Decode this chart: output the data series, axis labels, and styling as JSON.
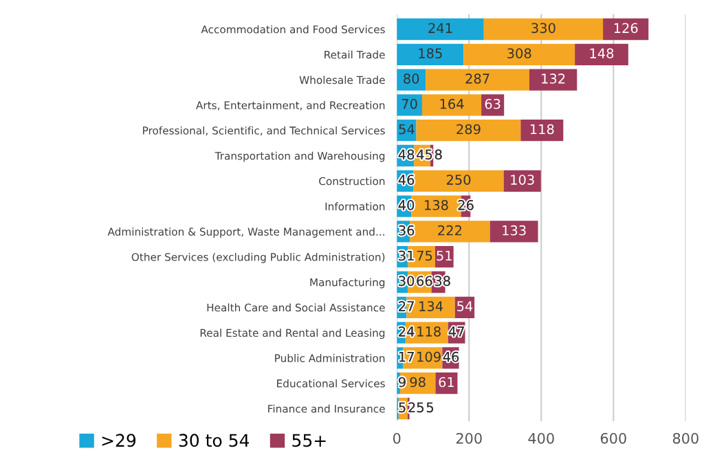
{
  "chart_data": {
    "type": "bar",
    "orientation": "horizontal",
    "stacked": true,
    "data_labels": true,
    "grid": "x",
    "legend": "bottom left",
    "categories": [
      "Accommodation and Food Services",
      "Retail Trade",
      "Wholesale Trade",
      "Arts, Entertainment, and Recreation",
      "Professional, Scientific, and Technical Services",
      "Transportation and Warehousing",
      "Construction",
      "Information",
      "Administration & Support, Waste Management and...",
      "Other Services (excluding Public Administration)",
      "Manufacturing",
      "Health Care and Social Assistance",
      "Real Estate and Rental and Leasing",
      "Public Administration",
      "Educational Services",
      "Finance and Insurance"
    ],
    "series": [
      {
        "name": ">29",
        "color": "#1aa8d8",
        "values": [
          241,
          185,
          80,
          70,
          54,
          48,
          46,
          40,
          36,
          31,
          30,
          27,
          24,
          17,
          9,
          5
        ]
      },
      {
        "name": "30 to 54",
        "color": "#f5a623",
        "values": [
          330,
          308,
          287,
          164,
          289,
          45,
          250,
          138,
          222,
          75,
          66,
          134,
          118,
          109,
          98,
          25
        ]
      },
      {
        "name": "55+",
        "color": "#9e3a5a",
        "values": [
          126,
          148,
          132,
          63,
          118,
          8,
          103,
          26,
          133,
          51,
          38,
          54,
          47,
          46,
          61,
          5
        ]
      }
    ],
    "xlim": [
      0,
      800
    ],
    "xticks": [
      0,
      200,
      400,
      600,
      800
    ]
  }
}
